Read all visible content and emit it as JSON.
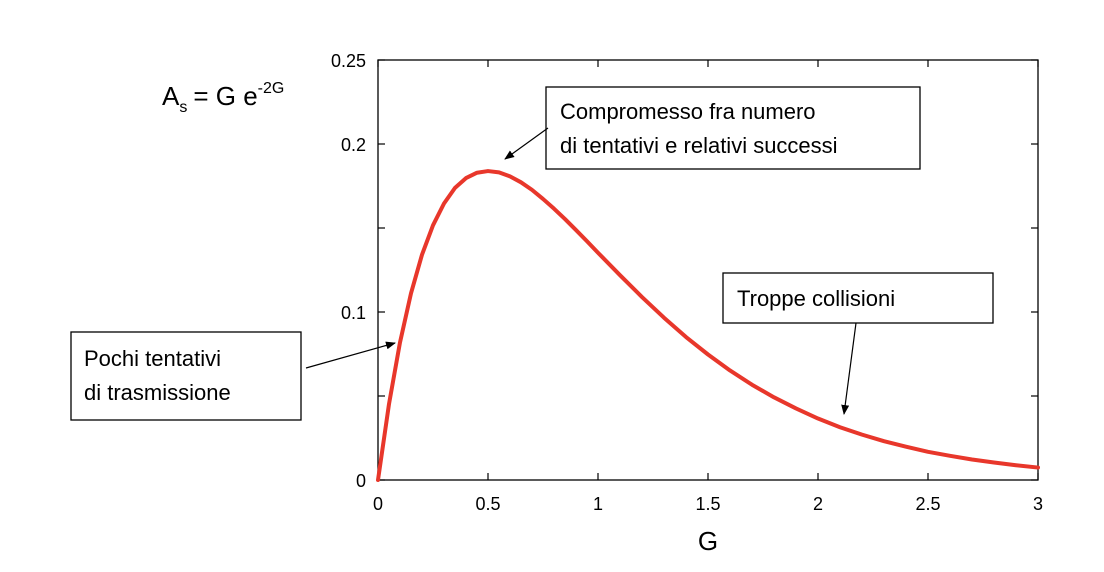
{
  "chart_data": {
    "type": "line",
    "formula": {
      "lhs_main": "A",
      "lhs_sub": "s",
      "rhs_main": "= G e",
      "rhs_sup": "-2G"
    },
    "xlabel": "G",
    "ylabel": "",
    "xlim": [
      0,
      3
    ],
    "ylim": [
      0,
      0.25
    ],
    "xticks": [
      0,
      0.5,
      1,
      1.5,
      2,
      2.5,
      3
    ],
    "xtick_labels": [
      "0",
      "0.5",
      "1",
      "1.5",
      "2",
      "2.5",
      "3"
    ],
    "yticks": [
      0,
      0.05,
      0.1,
      0.15,
      0.2,
      0.25
    ],
    "ytick_labels": [
      "0",
      "",
      "0.1",
      "",
      "0.2",
      "0.25"
    ],
    "grid": false,
    "series": [
      {
        "color": "#e8372b",
        "x": [
          0,
          0.05,
          0.1,
          0.15,
          0.2,
          0.25,
          0.3,
          0.35,
          0.4,
          0.45,
          0.5,
          0.55,
          0.6,
          0.65,
          0.7,
          0.75,
          0.8,
          0.85,
          0.9,
          0.95,
          1.0,
          1.1,
          1.2,
          1.3,
          1.4,
          1.5,
          1.6,
          1.7,
          1.8,
          1.9,
          2.0,
          2.1,
          2.2,
          2.3,
          2.4,
          2.5,
          2.6,
          2.7,
          2.8,
          2.9,
          3.0
        ],
        "y": [
          0,
          0.0452,
          0.0819,
          0.1111,
          0.1341,
          0.1516,
          0.1646,
          0.1739,
          0.1797,
          0.1829,
          0.1839,
          0.1831,
          0.1807,
          0.1772,
          0.1727,
          0.1673,
          0.1615,
          0.1553,
          0.1488,
          0.1421,
          0.1353,
          0.1219,
          0.1089,
          0.0966,
          0.0851,
          0.0747,
          0.0652,
          0.0567,
          0.0492,
          0.0426,
          0.0366,
          0.0314,
          0.027,
          0.0231,
          0.0198,
          0.0168,
          0.0144,
          0.0122,
          0.0104,
          0.0088,
          0.0074
        ]
      }
    ],
    "annotations": [
      {
        "lines": [
          "Compromesso fra numero",
          "di tentativi e relativi successi"
        ],
        "target": [
          0.58,
          0.195
        ]
      },
      {
        "lines": [
          "Troppe collisioni"
        ],
        "target": [
          2.1,
          0.041
        ]
      },
      {
        "lines": [
          "Pochi tentativi",
          "di trasmissione"
        ],
        "target": [
          0.08,
          0.086
        ]
      }
    ]
  },
  "colors": {
    "curve": "#e8372b",
    "axis": "#000000"
  }
}
